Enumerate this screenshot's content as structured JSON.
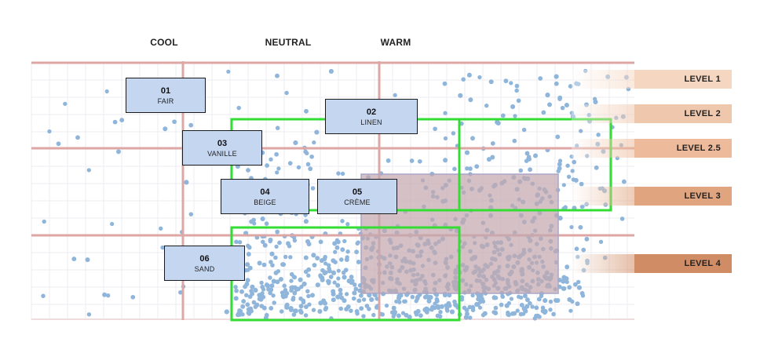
{
  "columns": [
    {
      "id": "cool",
      "label": "COOL"
    },
    {
      "id": "neutral",
      "label": "NEUTRAL"
    },
    {
      "id": "warm",
      "label": "WARM"
    }
  ],
  "shades": [
    {
      "number": "01",
      "name": "FAIR"
    },
    {
      "number": "02",
      "name": "LINEN"
    },
    {
      "number": "03",
      "name": "VANILLE"
    },
    {
      "number": "04",
      "name": "BEIGE"
    },
    {
      "number": "05",
      "name": "CRÈME"
    },
    {
      "number": "06",
      "name": "SAND"
    }
  ],
  "levels": [
    {
      "label": "LEVEL 1",
      "color": "#f5d6c0"
    },
    {
      "label": "LEVEL 2",
      "color": "#efc7ad"
    },
    {
      "label": "LEVEL 2.5",
      "color": "#edbb9b"
    },
    {
      "label": "LEVEL 3",
      "color": "#e0a47e"
    },
    {
      "label": "LEVEL 4",
      "color": "#d08c65"
    }
  ],
  "colors": {
    "gridline": "#dca7a5",
    "scatter_point": "#8fb6da",
    "highlight_outline": "#33dd33",
    "overlay_region": "#c4a8ae",
    "shade_box_fill": "#c5d6f1"
  }
}
